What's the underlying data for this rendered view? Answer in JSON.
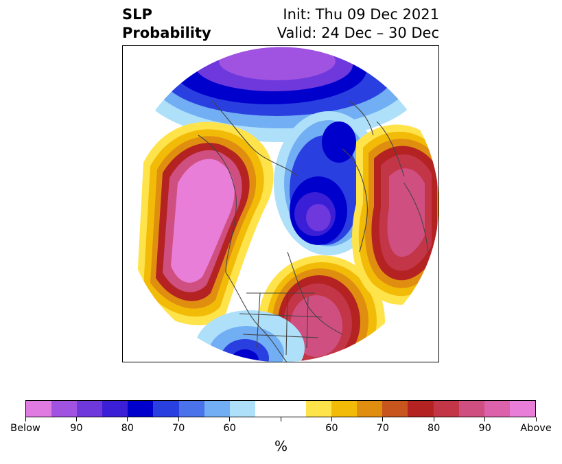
{
  "title": {
    "left_line1": "SLP",
    "left_line2": "Probability",
    "right_line1": "Init: Thu 09 Dec 2021",
    "right_line2": "Valid: 24 Dec – 30 Dec"
  },
  "map": {
    "projection": "north-polar-stereographic",
    "regions": [
      {
        "name": "northeast-pacific-alaska-high",
        "category": "above",
        "level": "Above"
      },
      {
        "name": "eastern-north-america-high",
        "category": "above",
        "level": "Above"
      },
      {
        "name": "northern-europe-scandinavia-high",
        "category": "above",
        "level": "90"
      },
      {
        "name": "arctic-siberia-low",
        "category": "below",
        "level": "90"
      },
      {
        "name": "greenland-canadian-arctic-low",
        "category": "below",
        "level": "90"
      },
      {
        "name": "western-us-low",
        "category": "below",
        "level": "80"
      },
      {
        "name": "southwest-us-mexico-low",
        "category": "below",
        "level": "90"
      }
    ]
  },
  "colorbar": {
    "unit_label": "%",
    "colors": [
      "#e07be2",
      "#a052e0",
      "#6e38dc",
      "#3b1fd6",
      "#0000cc",
      "#2a3fe0",
      "#4a72ea",
      "#72aef4",
      "#aee0fa",
      "#ffffff",
      "#ffffff",
      "#ffe34a",
      "#f2bb08",
      "#e08e10",
      "#c8541e",
      "#b42222",
      "#c23648",
      "#cf4f80",
      "#dc62ac",
      "#e87ed8"
    ],
    "tick_labels": [
      "Below",
      "90",
      "80",
      "70",
      "60",
      "",
      "60",
      "70",
      "80",
      "90",
      "Above"
    ]
  },
  "colors": {
    "above_strong": "#e87ed8",
    "below_strong": "#e07be2",
    "above_mid": "#b42222",
    "below_mid": "#0000cc",
    "coast": "#444444"
  }
}
